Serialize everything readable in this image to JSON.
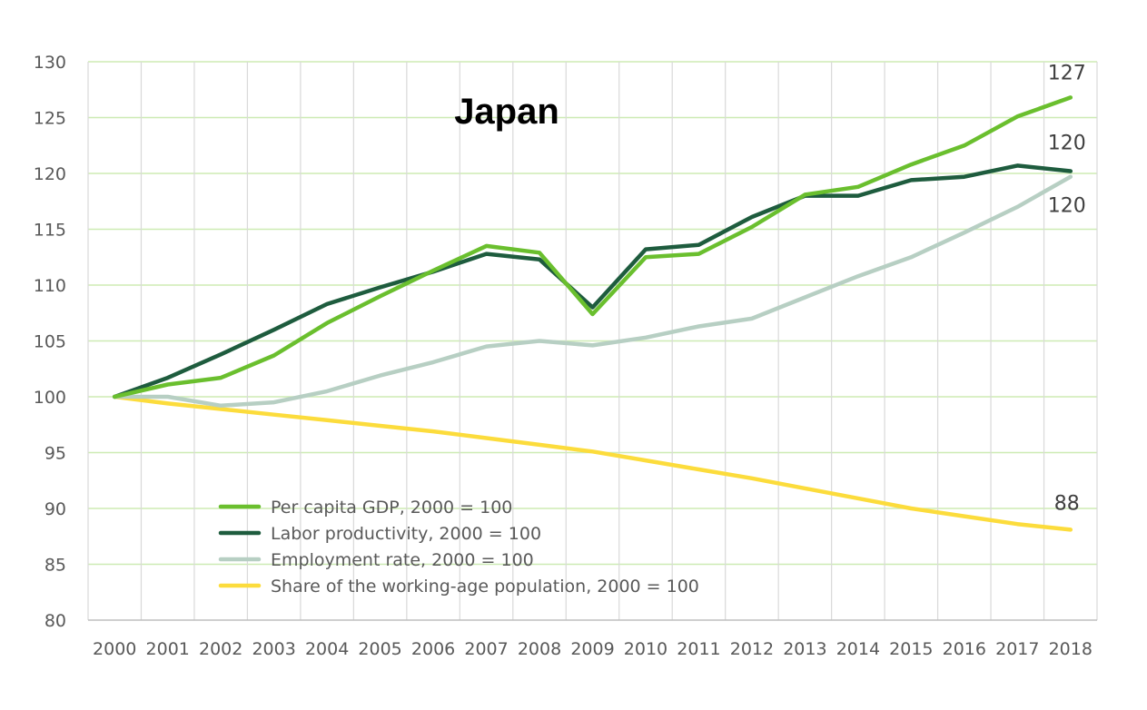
{
  "chart_data": {
    "type": "line",
    "title": "Japan",
    "xlabel": "",
    "ylabel": "",
    "x": [
      "2000",
      "2001",
      "2002",
      "2003",
      "2004",
      "2005",
      "2006",
      "2007",
      "2008",
      "2009",
      "2010",
      "2011",
      "2012",
      "2013",
      "2014",
      "2015",
      "2016",
      "2017",
      "2018"
    ],
    "ylim": [
      80,
      130
    ],
    "yticks": [
      80,
      85,
      90,
      95,
      100,
      105,
      110,
      115,
      120,
      125,
      130
    ],
    "grid": {
      "horizontal": true,
      "vertical": true
    },
    "legend_position": "bottom-left",
    "series": [
      {
        "name": "Per capita GDP, 2000 = 100",
        "color": "#6ABF2E",
        "values": [
          100,
          101.1,
          101.7,
          103.7,
          106.6,
          109.0,
          111.3,
          113.5,
          112.9,
          107.4,
          112.5,
          112.8,
          115.2,
          118.1,
          118.8,
          120.8,
          122.5,
          125.1,
          126.8
        ],
        "end_label": "127"
      },
      {
        "name": "Labor productivity, 2000 = 100",
        "color": "#1E5C3E",
        "values": [
          100,
          101.7,
          103.8,
          106.0,
          108.3,
          109.8,
          111.2,
          112.8,
          112.3,
          108.0,
          113.2,
          113.6,
          116.1,
          118.0,
          118.0,
          119.4,
          119.7,
          120.7,
          120.2
        ],
        "end_label": "120"
      },
      {
        "name": "Employment rate, 2000 = 100",
        "color": "#B7CFC3",
        "values": [
          100,
          100.0,
          99.2,
          99.5,
          100.5,
          101.9,
          103.1,
          104.5,
          105.0,
          104.6,
          105.3,
          106.3,
          107.0,
          108.9,
          110.8,
          112.5,
          114.7,
          117.0,
          119.7
        ],
        "end_label": "120"
      },
      {
        "name": "Share of the working-age population, 2000 = 100",
        "color": "#FCDC3C",
        "values": [
          100,
          99.4,
          98.9,
          98.4,
          97.9,
          97.4,
          96.9,
          96.3,
          95.7,
          95.1,
          94.3,
          93.5,
          92.7,
          91.8,
          90.9,
          90.0,
          89.3,
          88.6,
          88.1
        ],
        "end_label": "88"
      }
    ]
  }
}
